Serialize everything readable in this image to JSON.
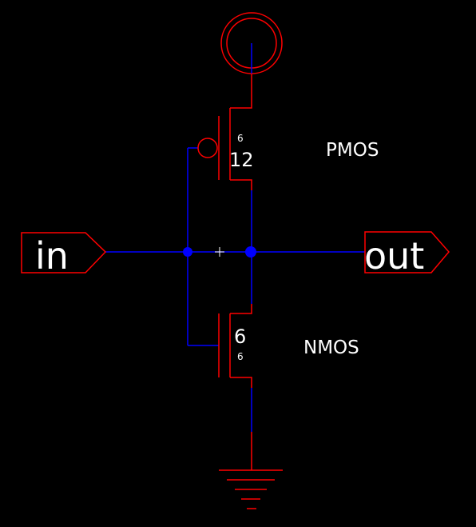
{
  "colors": {
    "background": "#000000",
    "device": "#ff0000",
    "wire": "#0000ff",
    "junction": "#0000ff",
    "text": "#ffffff"
  },
  "ports": {
    "input": "in",
    "output": "out"
  },
  "supply": {
    "vdd_symbol": "vdd-circle-icon",
    "gnd_symbol": "ground-icon"
  },
  "pmos": {
    "label": "PMOS",
    "width": "12",
    "length": "6"
  },
  "nmos": {
    "label": "NMOS",
    "width": "6",
    "length": "6"
  }
}
